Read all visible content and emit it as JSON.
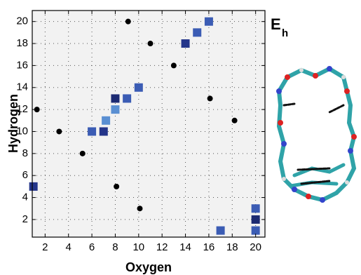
{
  "chart_data": {
    "type": "scatter",
    "xlabel": "Oxygen",
    "ylabel": "Hydrogen",
    "annotation": {
      "text": "E",
      "subscript": "h"
    },
    "xlim": [
      0.9,
      20.8
    ],
    "ylim": [
      0.4,
      21
    ],
    "xticks": [
      2,
      4,
      6,
      8,
      10,
      12,
      14,
      16,
      18,
      20
    ],
    "yticks": [
      2,
      4,
      6,
      8,
      10,
      12,
      14,
      16,
      18,
      20
    ],
    "grid": true,
    "background": "#f2f2f2",
    "series": [
      {
        "marker": "circle",
        "color": "#000000",
        "x": [
          1.3,
          3.2,
          5.2,
          8.1,
          9.1,
          10.1,
          11,
          13,
          16.1,
          18.2
        ],
        "values": [
          12,
          10,
          8,
          5,
          20,
          3,
          18,
          16,
          13,
          11
        ]
      },
      {
        "marker": "square",
        "colors": [
          "#24358a",
          "#3b5cb4",
          "#24358a",
          "#5a8fd2",
          "#5a8fd2",
          "#1c2a72",
          "#3b5cb4",
          "#3b5cb4",
          "#24358a",
          "#3b5cb4",
          "#3b5cb4",
          "#3b5cb4",
          "#3b5cb4",
          "#1c2a72",
          "#3b5cb4"
        ],
        "x": [
          1,
          6,
          7,
          7.2,
          8,
          8,
          9,
          10,
          14,
          15,
          16,
          17,
          20,
          20,
          20
        ],
        "values": [
          5,
          10,
          10,
          11,
          12,
          13,
          13,
          14,
          18,
          19,
          20,
          1,
          1,
          2,
          3
        ]
      }
    ]
  }
}
